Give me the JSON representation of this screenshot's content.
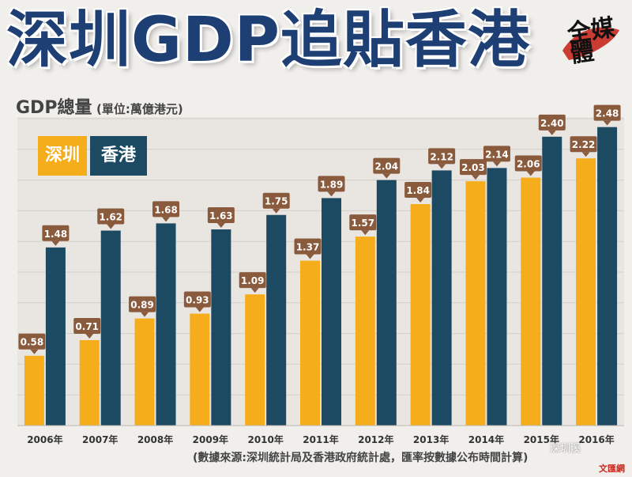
{
  "title": "深圳GDP追貼香港",
  "logo_text": "全媒體",
  "subtitle": {
    "main": "GDP總量",
    "unit": "(單位:萬億港元)"
  },
  "footer_note": "(數據來源:深圳統計局及香港政府統計處，匯率按數據公布時間計算)",
  "watermark": "深圳溪",
  "brand": "文匯網",
  "colors": {
    "shenzhen": "#f5ad1b",
    "hongkong": "#1c4a63",
    "label_bg": "#8a5a3c",
    "title": "#1e3f73"
  },
  "chart_data": {
    "type": "bar",
    "title": "深圳GDP追貼香港",
    "ylabel": "GDP總量 (單位:萬億港元)",
    "xlabel": "",
    "ylim": [
      0,
      2.55
    ],
    "grid": true,
    "legend_position": "top-left",
    "categories": [
      "2006年",
      "2007年",
      "2008年",
      "2009年",
      "2010年",
      "2011年",
      "2012年",
      "2013年",
      "2014年",
      "2015年",
      "2016年"
    ],
    "series": [
      {
        "name": "深圳",
        "color": "#f5ad1b",
        "values": [
          0.58,
          0.71,
          0.89,
          0.93,
          1.09,
          1.37,
          1.57,
          1.84,
          2.03,
          2.06,
          2.22
        ]
      },
      {
        "name": "香港",
        "color": "#1c4a63",
        "values": [
          1.48,
          1.62,
          1.68,
          1.63,
          1.75,
          1.89,
          2.04,
          2.12,
          2.14,
          2.4,
          2.48
        ]
      }
    ]
  }
}
